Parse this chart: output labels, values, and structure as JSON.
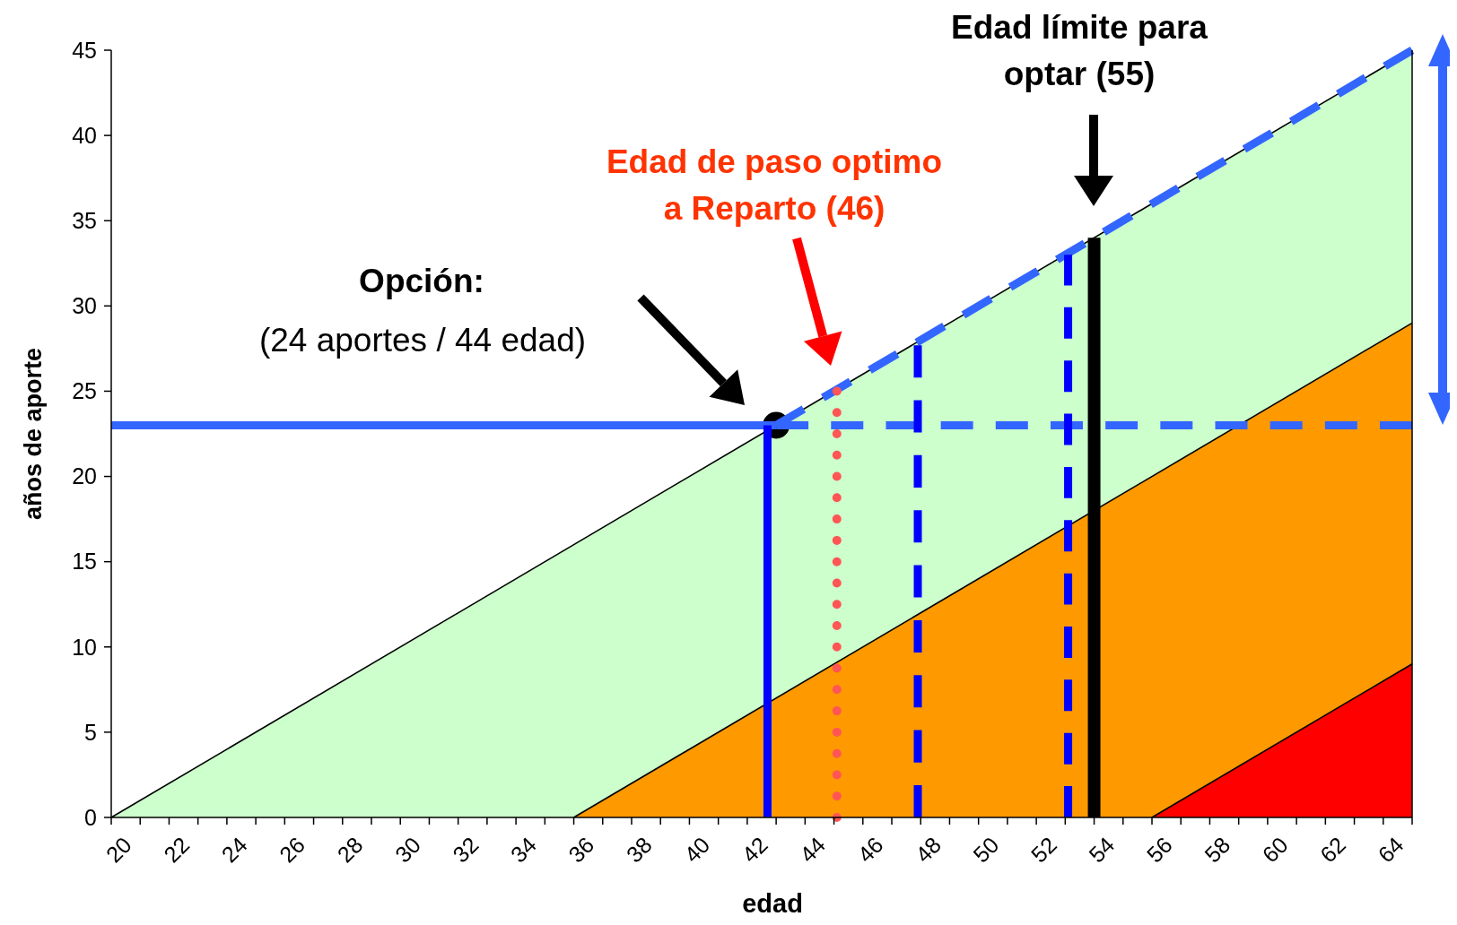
{
  "chart_data": {
    "type": "area",
    "xlabel": "edad",
    "ylabel": "años de aporte",
    "xlim": [
      20,
      65
    ],
    "ylim": [
      0,
      45
    ],
    "xticks": [
      20,
      {
        "value": 21,
        "label": null
      },
      22,
      {
        "value": 23,
        "label": null
      },
      24,
      {
        "value": 25,
        "label": null
      },
      26,
      {
        "value": 27,
        "label": null
      },
      28,
      {
        "value": 29,
        "label": null
      },
      30,
      {
        "value": 31,
        "label": null
      },
      32,
      {
        "value": 33,
        "label": null
      },
      34,
      {
        "value": 35,
        "label": null
      },
      36,
      {
        "value": 37,
        "label": null
      },
      38,
      {
        "value": 39,
        "label": null
      },
      40,
      {
        "value": 41,
        "label": null
      },
      42,
      {
        "value": 43,
        "label": null
      },
      44,
      {
        "value": 45,
        "label": null
      },
      46,
      {
        "value": 47,
        "label": null
      },
      48,
      {
        "value": 49,
        "label": null
      },
      50,
      {
        "value": 51,
        "label": null
      },
      52,
      {
        "value": 53,
        "label": null
      },
      54,
      {
        "value": 55,
        "label": null
      },
      56,
      {
        "value": 57,
        "label": null
      },
      58,
      {
        "value": 59,
        "label": null
      },
      60,
      {
        "value": 61,
        "label": null
      },
      62,
      {
        "value": 63,
        "label": null
      },
      64,
      {
        "value": 65,
        "label": null
      }
    ],
    "yticks": [
      0,
      5,
      10,
      15,
      20,
      25,
      30,
      35,
      40,
      45
    ],
    "grid": false,
    "series": [
      {
        "color": "#ccffcc",
        "x": [
          20,
          65
        ],
        "values": [
          0,
          45
        ]
      },
      {
        "color": "#ff9900",
        "x": [
          36,
          65
        ],
        "values": [
          0,
          29
        ]
      },
      {
        "color": "#ff0000",
        "x": [
          56,
          65
        ],
        "values": [
          0,
          9
        ]
      },
      {
        "type": "line",
        "color": "#3366ff",
        "line_style": "solid",
        "x": [
          20,
          43
        ],
        "values": [
          23,
          23
        ]
      },
      {
        "type": "line",
        "color": "#3366ff",
        "line_style": "dashed",
        "x": [
          43,
          65
        ],
        "values": [
          23,
          23
        ]
      },
      {
        "type": "line",
        "color": "#3366ff",
        "line_style": "dashed",
        "x": [
          43,
          65
        ],
        "values": [
          23,
          45
        ]
      },
      {
        "type": "line",
        "color": "#0000ff",
        "line_style": "solid",
        "x": [
          42.7,
          42.7
        ],
        "values": [
          0,
          23
        ]
      },
      {
        "type": "line",
        "color": "#ff5555",
        "line_style": "dotted",
        "x": [
          45.1,
          45.1
        ],
        "values": [
          0,
          25
        ]
      },
      {
        "type": "line",
        "color": "#0000ff",
        "line_style": "dashed",
        "x": [
          47.9,
          47.9
        ],
        "values": [
          0,
          27.7
        ]
      },
      {
        "type": "line",
        "color": "#0000ff",
        "line_style": "dashed",
        "x": [
          53.1,
          53.1
        ],
        "values": [
          0,
          33
        ]
      },
      {
        "type": "line",
        "color": "#000000",
        "line_style": "solid",
        "x": [
          54,
          54
        ],
        "values": [
          0,
          34
        ]
      },
      {
        "type": "scatter",
        "color": "#000000",
        "marker": "circle",
        "x": [
          43
        ],
        "values": [
          23
        ]
      }
    ],
    "annotations": [
      "Opción:",
      "(24 aportes / 44 edad)",
      "Edad de paso optimo\na Reparto (46)",
      "Edad límite para\noptar (55)"
    ]
  }
}
